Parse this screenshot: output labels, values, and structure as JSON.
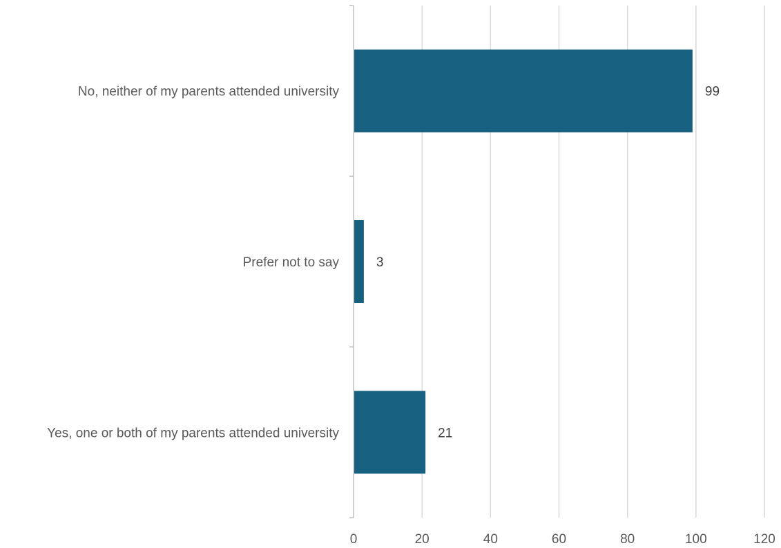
{
  "chart_data": {
    "type": "bar",
    "orientation": "horizontal",
    "categories": [
      "No, neither of my parents attended university",
      "Prefer not to say",
      "Yes, one or both of my parents attended university"
    ],
    "values": [
      99,
      3,
      21
    ],
    "data_labels": [
      "99",
      "3",
      "21"
    ],
    "xlim": [
      0,
      120
    ],
    "x_ticks": [
      0,
      20,
      40,
      60,
      80,
      100,
      120
    ],
    "x_tick_labels": [
      "0",
      "20",
      "40",
      "60",
      "80",
      "100",
      "120"
    ],
    "title": "",
    "xlabel": "",
    "ylabel": "",
    "grid": true,
    "legend": "none",
    "bar_color": "#17607f"
  }
}
